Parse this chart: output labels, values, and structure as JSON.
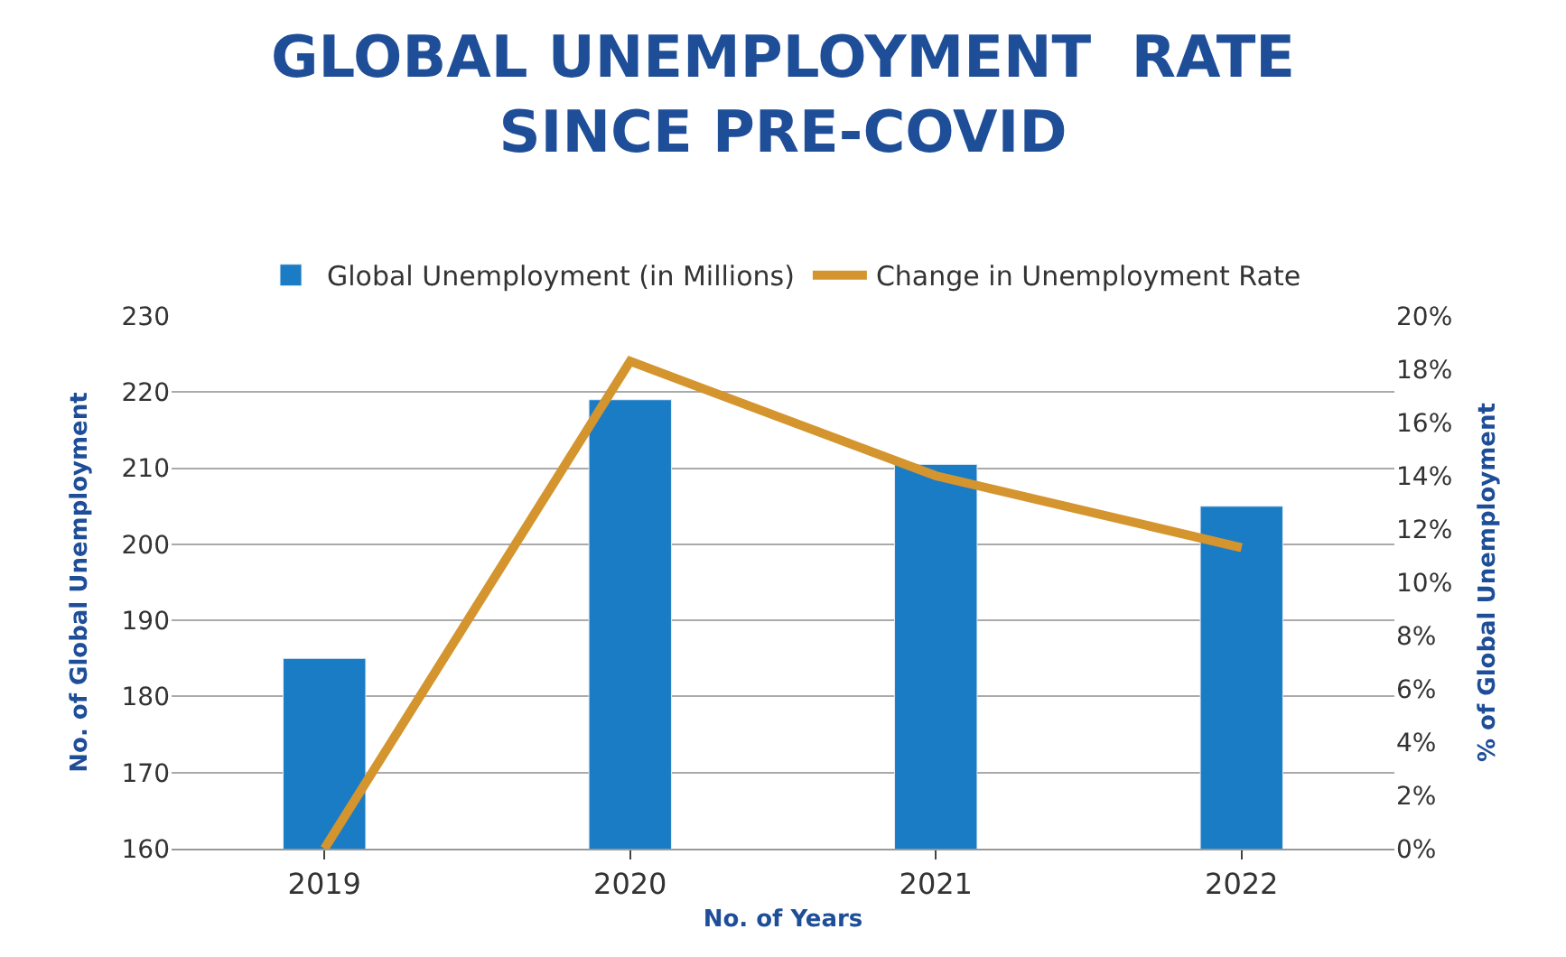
{
  "chart_data": {
    "type": "bar",
    "title": "GLOBAL UNEMPLOYMENT  RATE\nSINCE PRE-COVID",
    "xlabel": "No. of Years",
    "ylabel": "No. of Global Unemployment",
    "y2label": "% of Global Unemployment",
    "categories": [
      "2019",
      "2020",
      "2021",
      "2022"
    ],
    "series": [
      {
        "name": "Global Unemployment (in Millions)",
        "color": "#1a7cc4",
        "values": [
          185,
          219,
          210.5,
          205
        ]
      },
      {
        "name": "Change in Unemployment Rate",
        "type": "line",
        "axis": "y2",
        "color": "#d4952f",
        "values": [
          0,
          18.3,
          14.0,
          11.3
        ]
      }
    ],
    "ylim": [
      160,
      230
    ],
    "yticks": [
      160,
      170,
      180,
      190,
      200,
      210,
      220,
      230
    ],
    "y2lim": [
      0,
      20
    ],
    "y2ticks": [
      {
        "value": 0,
        "label": "0%"
      },
      {
        "value": 2,
        "label": "2%"
      },
      {
        "value": 4,
        "label": "4%"
      },
      {
        "value": 6,
        "label": "6%"
      },
      {
        "value": 8,
        "label": "8%"
      },
      {
        "value": 10,
        "label": "10%"
      },
      {
        "value": 12,
        "label": "12%"
      },
      {
        "value": 14,
        "label": "14%"
      },
      {
        "value": 16,
        "label": "16%"
      },
      {
        "value": 18,
        "label": "18%"
      },
      {
        "value": 20,
        "label": "20%"
      }
    ],
    "grid": "y",
    "legend": "top",
    "marker": "none",
    "line_style": "solid"
  }
}
